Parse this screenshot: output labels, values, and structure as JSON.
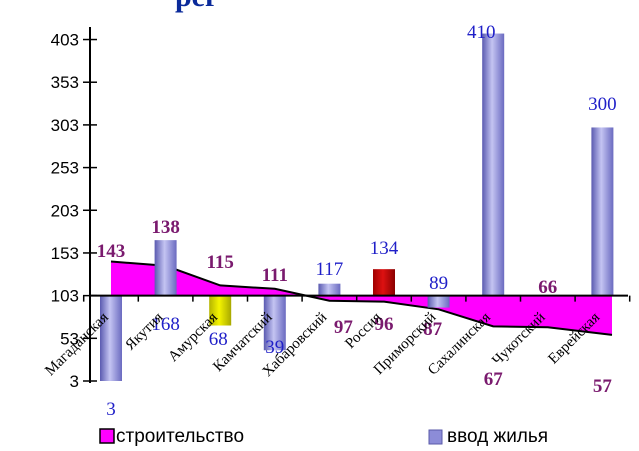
{
  "title": "рег",
  "legend": {
    "area_label": "строительство",
    "bars_label": "ввод жилья"
  },
  "colors": {
    "area": "#ff00ff",
    "bar": "#8c8cd8",
    "bar_highlight_amur": "#f4f400",
    "bar_highlight_russia": "#dd1111",
    "bar_label": "#1f1fc8",
    "area_label": "#7a1a6e"
  },
  "chart_data": {
    "type": "bar",
    "title": "рег",
    "categories": [
      "Магаданская",
      "Якутия",
      "Амурская",
      "Камчатский",
      "Хабаровский",
      "Россия",
      "Приморский",
      "Сахалинская",
      "Чукотский",
      "Еврейская"
    ],
    "baseline": 103,
    "ylim": [
      3,
      413
    ],
    "y_ticks": [
      "3",
      "53",
      "103",
      "153",
      "203",
      "253",
      "303",
      "353",
      "403"
    ],
    "series": [
      {
        "name": "ввод жилья",
        "type": "bar",
        "values": [
          3,
          168,
          68,
          39,
          117,
          134,
          89,
          410,
          null,
          300
        ],
        "labels": [
          "3",
          "168",
          "68",
          "39",
          "117",
          "134",
          "89",
          "410",
          "",
          "300"
        ]
      },
      {
        "name": "строительство",
        "type": "area",
        "values": [
          143,
          138,
          115,
          111,
          97,
          96,
          87,
          67,
          66,
          57
        ],
        "labels": [
          "143",
          "138",
          "115",
          "111",
          "97",
          "96",
          "87",
          "67",
          "66",
          "57"
        ]
      }
    ]
  }
}
